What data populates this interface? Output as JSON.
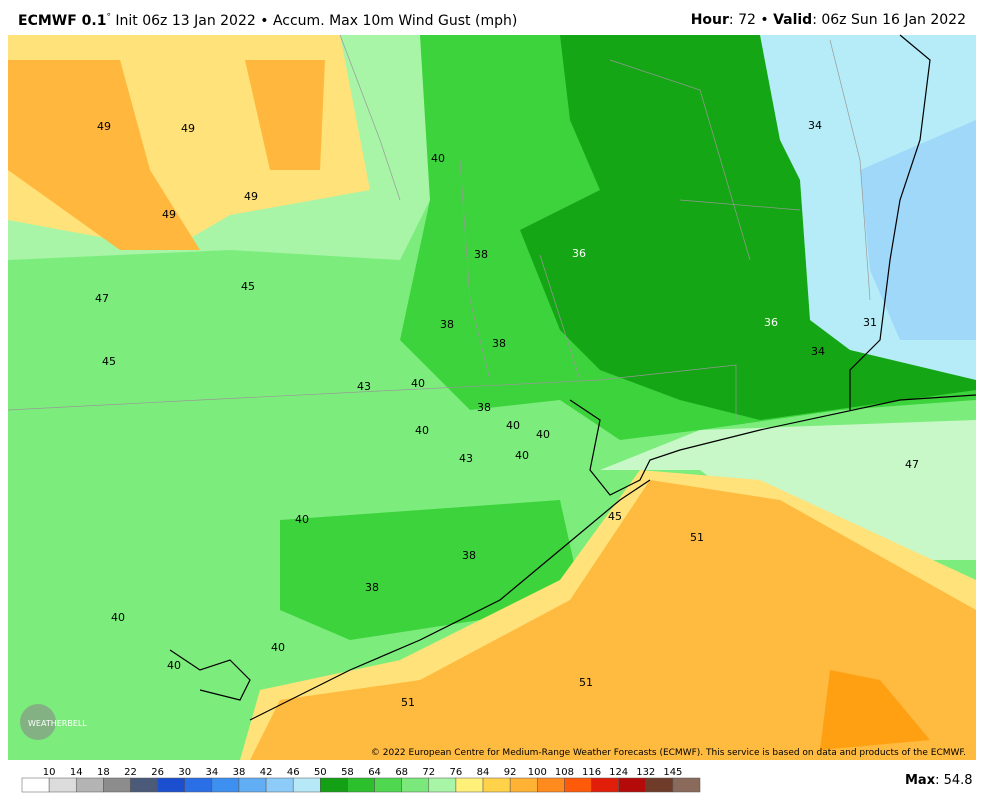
{
  "header": {
    "model": "ECMWF 0.1",
    "degree": "°",
    "init": "Init 06z 13 Jan 2022",
    "separator": "•",
    "field": "Accum. Max 10m Wind Gust (mph)",
    "hour_label": "Hour",
    "hour_value": ": 72",
    "valid_label": "Valid",
    "valid_value": ": 06z Sun 16 Jan 2022"
  },
  "map": {
    "labels": [
      49,
      49,
      40,
      34,
      49,
      49,
      38,
      36,
      47,
      45,
      38,
      38,
      36,
      31,
      34,
      45,
      43,
      40,
      38,
      40,
      40,
      40,
      40,
      43,
      47,
      45,
      51,
      40,
      38,
      38,
      40,
      40,
      40,
      51,
      51
    ],
    "copyright": "© 2022 European Centre for Medium-Range Weather Forecasts (ECMWF). This service is based on data and products of the ECMWF.",
    "logo": "WEATHERBELL"
  },
  "colorbar": {
    "ticks": [
      10,
      14,
      18,
      22,
      26,
      30,
      34,
      38,
      42,
      46,
      50,
      58,
      64,
      68,
      72,
      76,
      84,
      92,
      100,
      108,
      116,
      124,
      132,
      145
    ],
    "colors": [
      "#ffffff",
      "#dcdcdc",
      "#b4b4b4",
      "#8c8c8c",
      "#4a5a78",
      "#1c4fd0",
      "#2a6fe6",
      "#3d8ff0",
      "#62aef5",
      "#8dcbf8",
      "#b6e8f8",
      "#14a014",
      "#2cc02c",
      "#4fd84f",
      "#7be87b",
      "#a8f5a8",
      "#fff07a",
      "#ffd24a",
      "#ffb234",
      "#ff8a1e",
      "#ff5a0a",
      "#e01e0a",
      "#b40a0a",
      "#6e3c28",
      "#8a6a5a"
    ],
    "max_label": "Max",
    "max_value": ": 54.8"
  }
}
